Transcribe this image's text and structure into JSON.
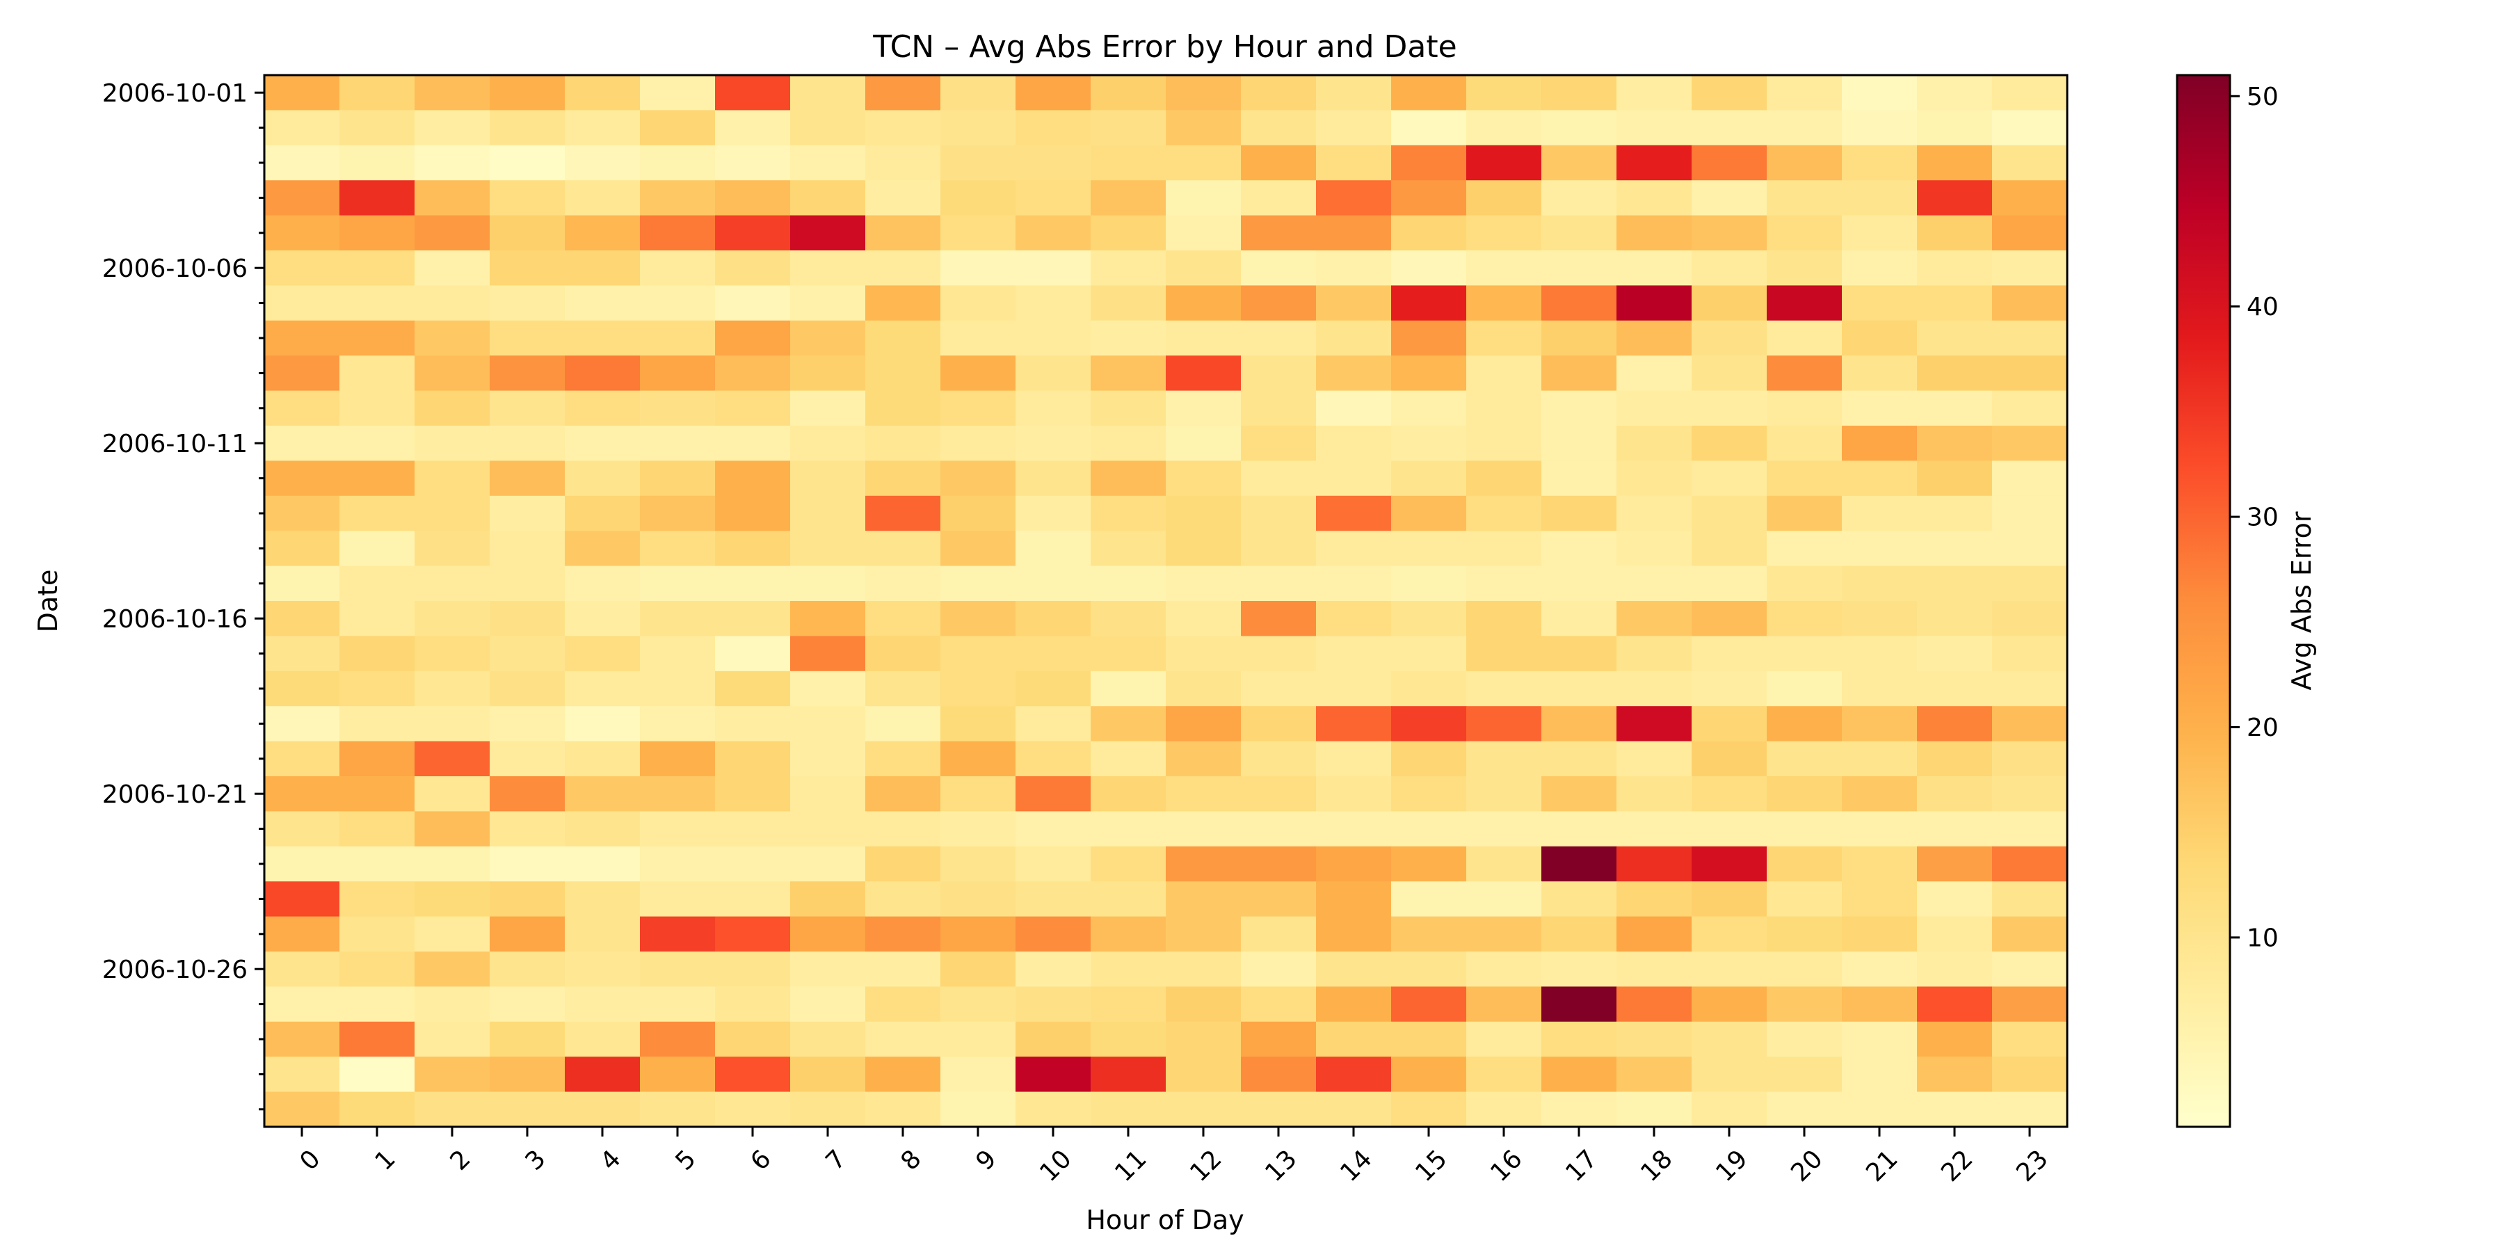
{
  "chart_data": {
    "type": "heatmap",
    "title": "TCN – Avg Abs Error by Hour and Date",
    "xlabel": "Hour of Day",
    "ylabel": "Date",
    "colorbar_label": "Avg Abs Error",
    "colormap": "YlOrRd",
    "vmin": 1,
    "vmax": 51,
    "colorbar_ticks": [
      10,
      20,
      30,
      40,
      50
    ],
    "x_categories": [
      "0",
      "1",
      "2",
      "3",
      "4",
      "5",
      "6",
      "7",
      "8",
      "9",
      "10",
      "11",
      "12",
      "13",
      "14",
      "15",
      "16",
      "17",
      "18",
      "19",
      "20",
      "21",
      "22",
      "23"
    ],
    "y_categories": [
      "2006-10-01",
      "2006-10-02",
      "2006-10-03",
      "2006-10-04",
      "2006-10-05",
      "2006-10-06",
      "2006-10-07",
      "2006-10-08",
      "2006-10-09",
      "2006-10-10",
      "2006-10-11",
      "2006-10-12",
      "2006-10-13",
      "2006-10-14",
      "2006-10-15",
      "2006-10-16",
      "2006-10-17",
      "2006-10-18",
      "2006-10-19",
      "2006-10-20",
      "2006-10-21",
      "2006-10-22",
      "2006-10-23",
      "2006-10-24",
      "2006-10-25",
      "2006-10-26",
      "2006-10-27",
      "2006-10-28",
      "2006-10-29",
      "2006-10-30"
    ],
    "y_tick_labels": [
      {
        "date": "2006-10-01",
        "label": "2006-10-01"
      },
      {
        "date": "2006-10-06",
        "label": "2006-10-06"
      },
      {
        "date": "2006-10-11",
        "label": "2006-10-11"
      },
      {
        "date": "2006-10-16",
        "label": "2006-10-16"
      },
      {
        "date": "2006-10-21",
        "label": "2006-10-21"
      },
      {
        "date": "2006-10-26",
        "label": "2006-10-26"
      }
    ],
    "values": [
      [
        20,
        14,
        18,
        20,
        14,
        6,
        33,
        10,
        24,
        11,
        22,
        15,
        18,
        14,
        10,
        20,
        13,
        14,
        7,
        14,
        8,
        3,
        6,
        8
      ],
      [
        8,
        10,
        7,
        10,
        8,
        14,
        6,
        10,
        9,
        10,
        12,
        11,
        16,
        10,
        8,
        3,
        6,
        5,
        6,
        6,
        6,
        4,
        5,
        3
      ],
      [
        4,
        5,
        3,
        2,
        4,
        5,
        4,
        6,
        8,
        11,
        11,
        12,
        12,
        20,
        12,
        27,
        39,
        16,
        38,
        28,
        18,
        12,
        20,
        10
      ],
      [
        24,
        36,
        18,
        12,
        9,
        16,
        18,
        14,
        7,
        13,
        12,
        17,
        5,
        8,
        29,
        24,
        15,
        7,
        9,
        6,
        10,
        10,
        35,
        20
      ],
      [
        20,
        22,
        24,
        15,
        19,
        28,
        34,
        42,
        17,
        12,
        16,
        14,
        6,
        24,
        24,
        14,
        12,
        10,
        18,
        17,
        12,
        8,
        15,
        22
      ],
      [
        12,
        12,
        6,
        14,
        14,
        8,
        11,
        8,
        8,
        4,
        4,
        8,
        10,
        5,
        6,
        4,
        6,
        6,
        6,
        8,
        10,
        6,
        8,
        7
      ],
      [
        8,
        8,
        8,
        7,
        6,
        6,
        4,
        6,
        19,
        9,
        8,
        11,
        20,
        24,
        16,
        38,
        19,
        28,
        45,
        15,
        43,
        12,
        12,
        18
      ],
      [
        21,
        21,
        16,
        12,
        12,
        12,
        22,
        16,
        13,
        8,
        8,
        7,
        8,
        8,
        10,
        24,
        12,
        15,
        18,
        11,
        8,
        14,
        10,
        10
      ],
      [
        24,
        9,
        18,
        25,
        28,
        22,
        18,
        15,
        13,
        20,
        10,
        17,
        33,
        10,
        16,
        19,
        8,
        18,
        6,
        10,
        26,
        10,
        15,
        15
      ],
      [
        12,
        9,
        14,
        10,
        12,
        11,
        12,
        6,
        13,
        12,
        8,
        10,
        6,
        10,
        4,
        6,
        8,
        6,
        7,
        7,
        8,
        6,
        6,
        8
      ],
      [
        6,
        6,
        7,
        7,
        6,
        6,
        6,
        8,
        9,
        8,
        7,
        8,
        5,
        12,
        8,
        7,
        8,
        6,
        10,
        14,
        9,
        22,
        17,
        16
      ],
      [
        20,
        20,
        12,
        18,
        10,
        14,
        20,
        10,
        14,
        16,
        10,
        18,
        12,
        8,
        8,
        10,
        14,
        6,
        9,
        8,
        12,
        12,
        15,
        6
      ],
      [
        16,
        12,
        12,
        7,
        14,
        17,
        20,
        10,
        30,
        15,
        7,
        12,
        13,
        10,
        29,
        18,
        12,
        14,
        8,
        10,
        16,
        8,
        8,
        6
      ],
      [
        14,
        5,
        11,
        8,
        16,
        12,
        14,
        10,
        10,
        16,
        5,
        10,
        13,
        10,
        8,
        8,
        8,
        6,
        7,
        10,
        6,
        6,
        6,
        6
      ],
      [
        5,
        8,
        8,
        8,
        6,
        5,
        5,
        5,
        6,
        5,
        5,
        5,
        6,
        6,
        6,
        5,
        6,
        6,
        6,
        6,
        9,
        10,
        10,
        10
      ],
      [
        14,
        8,
        10,
        11,
        7,
        10,
        10,
        19,
        12,
        16,
        14,
        11,
        8,
        26,
        12,
        10,
        14,
        7,
        16,
        18,
        12,
        11,
        10,
        11
      ],
      [
        10,
        14,
        12,
        10,
        12,
        8,
        3,
        27,
        14,
        12,
        12,
        12,
        9,
        9,
        8,
        8,
        14,
        14,
        10,
        8,
        8,
        8,
        7,
        9
      ],
      [
        13,
        12,
        9,
        11,
        8,
        8,
        13,
        6,
        10,
        12,
        13,
        5,
        10,
        8,
        8,
        9,
        8,
        8,
        8,
        7,
        5,
        8,
        8,
        8
      ],
      [
        4,
        7,
        7,
        6,
        3,
        6,
        7,
        7,
        5,
        13,
        8,
        16,
        22,
        14,
        30,
        34,
        30,
        18,
        42,
        14,
        20,
        17,
        27,
        18
      ],
      [
        12,
        22,
        30,
        8,
        9,
        20,
        14,
        7,
        12,
        20,
        12,
        8,
        16,
        10,
        8,
        14,
        10,
        10,
        8,
        15,
        10,
        10,
        14,
        11
      ],
      [
        20,
        20,
        9,
        26,
        16,
        16,
        14,
        8,
        18,
        12,
        28,
        14,
        12,
        12,
        9,
        12,
        10,
        16,
        10,
        12,
        14,
        16,
        11,
        10
      ],
      [
        10,
        12,
        18,
        9,
        10,
        8,
        8,
        8,
        8,
        7,
        6,
        6,
        6,
        6,
        6,
        6,
        6,
        6,
        6,
        6,
        6,
        6,
        6,
        6
      ],
      [
        5,
        5,
        5,
        3,
        3,
        6,
        6,
        6,
        14,
        10,
        8,
        12,
        24,
        24,
        22,
        20,
        10,
        51,
        36,
        41,
        14,
        12,
        23,
        28
      ],
      [
        33,
        12,
        13,
        14,
        10,
        8,
        8,
        15,
        10,
        11,
        10,
        10,
        16,
        16,
        20,
        5,
        5,
        10,
        14,
        15,
        9,
        12,
        6,
        10
      ],
      [
        21,
        10,
        8,
        22,
        10,
        34,
        32,
        22,
        25,
        22,
        26,
        18,
        16,
        10,
        20,
        16,
        16,
        14,
        22,
        12,
        13,
        14,
        8,
        16
      ],
      [
        10,
        12,
        16,
        10,
        9,
        10,
        10,
        7,
        7,
        14,
        7,
        9,
        9,
        6,
        10,
        10,
        8,
        7,
        8,
        8,
        8,
        6,
        7,
        6
      ],
      [
        6,
        6,
        7,
        6,
        7,
        7,
        9,
        6,
        12,
        10,
        11,
        12,
        15,
        12,
        20,
        30,
        18,
        51,
        28,
        20,
        16,
        18,
        32,
        23
      ],
      [
        18,
        28,
        8,
        13,
        9,
        26,
        14,
        10,
        8,
        8,
        15,
        13,
        14,
        22,
        14,
        14,
        8,
        12,
        11,
        10,
        7,
        6,
        20,
        12
      ],
      [
        10,
        2,
        17,
        18,
        36,
        20,
        32,
        15,
        20,
        6,
        44,
        36,
        14,
        26,
        34,
        20,
        12,
        20,
        16,
        10,
        10,
        6,
        17,
        14
      ],
      [
        16,
        13,
        11,
        11,
        11,
        10,
        9,
        10,
        9,
        5,
        9,
        10,
        10,
        10,
        10,
        12,
        8,
        6,
        5,
        8,
        6,
        6,
        6,
        6
      ]
    ]
  }
}
